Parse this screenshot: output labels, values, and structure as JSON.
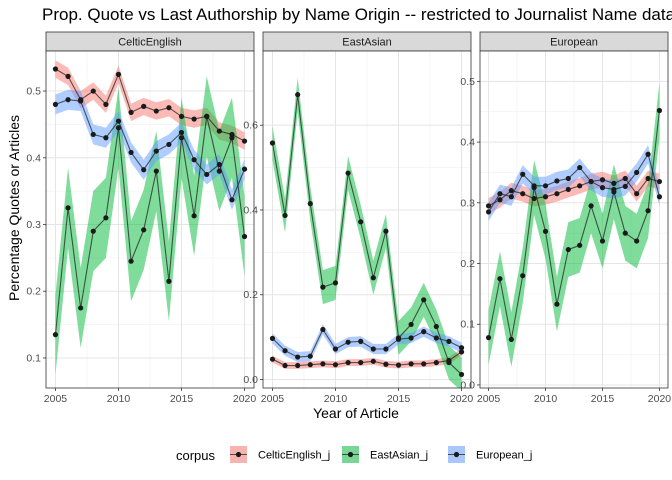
{
  "chart_data": {
    "type": "line",
    "title": "Prop. Quote vs Last Authorship by Name Origin -- restricted to Journalist Name data",
    "xlabel": "Year of Article",
    "ylabel": "Percentage Quotes or Articles",
    "x": [
      2005,
      2006,
      2007,
      2008,
      2009,
      2010,
      2011,
      2012,
      2013,
      2014,
      2015,
      2016,
      2017,
      2018,
      2019,
      2020
    ],
    "xticks": [
      "2005",
      "2010",
      "2015",
      "2020"
    ],
    "xlim": [
      2004.25,
      2020.75
    ],
    "legend": {
      "title": "corpus",
      "position": "bottom",
      "entries": [
        {
          "name": "CelticEnglish_j",
          "color": "#F8766D"
        },
        {
          "name": "EastAsian_j",
          "color": "#00BA38"
        },
        {
          "name": "European_j",
          "color": "#619CFF"
        }
      ]
    },
    "panels": [
      {
        "name": "CelticEnglish",
        "ylim": [
          0.055,
          0.56
        ],
        "yticks": [
          0.1,
          0.2,
          0.3,
          0.4,
          0.5
        ],
        "yticklabels": [
          "0.1",
          "0.2",
          "0.3",
          "0.4",
          "0.5"
        ],
        "series": [
          {
            "name": "CelticEnglish_j",
            "color": "#F8766D",
            "band": 0.013,
            "values": [
              0.533,
              0.522,
              0.487,
              0.5,
              0.48,
              0.525,
              0.468,
              0.477,
              0.47,
              0.475,
              0.462,
              0.458,
              0.462,
              0.44,
              0.435,
              0.425
            ]
          },
          {
            "name": "EastAsian_j",
            "color": "#00BA38",
            "band": 0.06,
            "values": [
              0.135,
              0.325,
              0.175,
              0.29,
              0.31,
              0.445,
              0.245,
              0.292,
              0.38,
              0.215,
              0.43,
              0.313,
              0.462,
              0.38,
              0.43,
              0.282
            ]
          },
          {
            "name": "European_j",
            "color": "#619CFF",
            "band": 0.015,
            "values": [
              0.48,
              0.487,
              0.485,
              0.435,
              0.43,
              0.455,
              0.408,
              0.382,
              0.41,
              0.42,
              0.438,
              0.397,
              0.375,
              0.39,
              0.337,
              0.383
            ]
          }
        ]
      },
      {
        "name": "EastAsian",
        "ylim": [
          -0.02,
          0.775
        ],
        "yticks": [
          0.0,
          0.2,
          0.4,
          0.6
        ],
        "yticklabels": [
          "0.0",
          "0.2",
          "0.4",
          "0.6"
        ],
        "series": [
          {
            "name": "CelticEnglish_j",
            "color": "#F8766D",
            "band": 0.008,
            "values": [
              0.048,
              0.033,
              0.033,
              0.035,
              0.037,
              0.035,
              0.04,
              0.04,
              0.043,
              0.036,
              0.034,
              0.037,
              0.037,
              0.04,
              0.045,
              0.065
            ]
          },
          {
            "name": "EastAsian_j",
            "color": "#00BA38",
            "band": 0.04,
            "values": [
              0.558,
              0.387,
              0.672,
              0.415,
              0.218,
              0.228,
              0.487,
              0.372,
              0.24,
              0.35,
              0.098,
              0.13,
              0.188,
              0.125,
              0.04,
              0.012
            ]
          },
          {
            "name": "European_j",
            "color": "#619CFF",
            "band": 0.012,
            "values": [
              0.097,
              0.068,
              0.053,
              0.055,
              0.118,
              0.072,
              0.088,
              0.09,
              0.072,
              0.072,
              0.095,
              0.098,
              0.113,
              0.098,
              0.09,
              0.075
            ]
          }
        ]
      },
      {
        "name": "European",
        "ylim": [
          -0.005,
          0.55
        ],
        "yticks": [
          0.0,
          0.1,
          0.2,
          0.3,
          0.4,
          0.5
        ],
        "yticklabels": [
          "0.0",
          "0.1",
          "0.2",
          "0.3",
          "0.4",
          "0.5"
        ],
        "series": [
          {
            "name": "CelticEnglish_j",
            "color": "#F8766D",
            "band": 0.013,
            "values": [
              0.295,
              0.305,
              0.32,
              0.315,
              0.307,
              0.31,
              0.315,
              0.322,
              0.328,
              0.335,
              0.338,
              0.332,
              0.34,
              0.315,
              0.34,
              0.335
            ]
          },
          {
            "name": "EastAsian_j",
            "color": "#00BA38",
            "band": 0.045,
            "values": [
              0.078,
              0.175,
              0.075,
              0.18,
              0.325,
              0.253,
              0.133,
              0.223,
              0.23,
              0.295,
              0.237,
              0.318,
              0.25,
              0.237,
              0.287,
              0.452
            ]
          },
          {
            "name": "European_j",
            "color": "#619CFF",
            "band": 0.015,
            "values": [
              0.285,
              0.315,
              0.31,
              0.347,
              0.328,
              0.328,
              0.336,
              0.34,
              0.358,
              0.335,
              0.325,
              0.322,
              0.327,
              0.35,
              0.38,
              0.31
            ]
          }
        ]
      }
    ]
  }
}
